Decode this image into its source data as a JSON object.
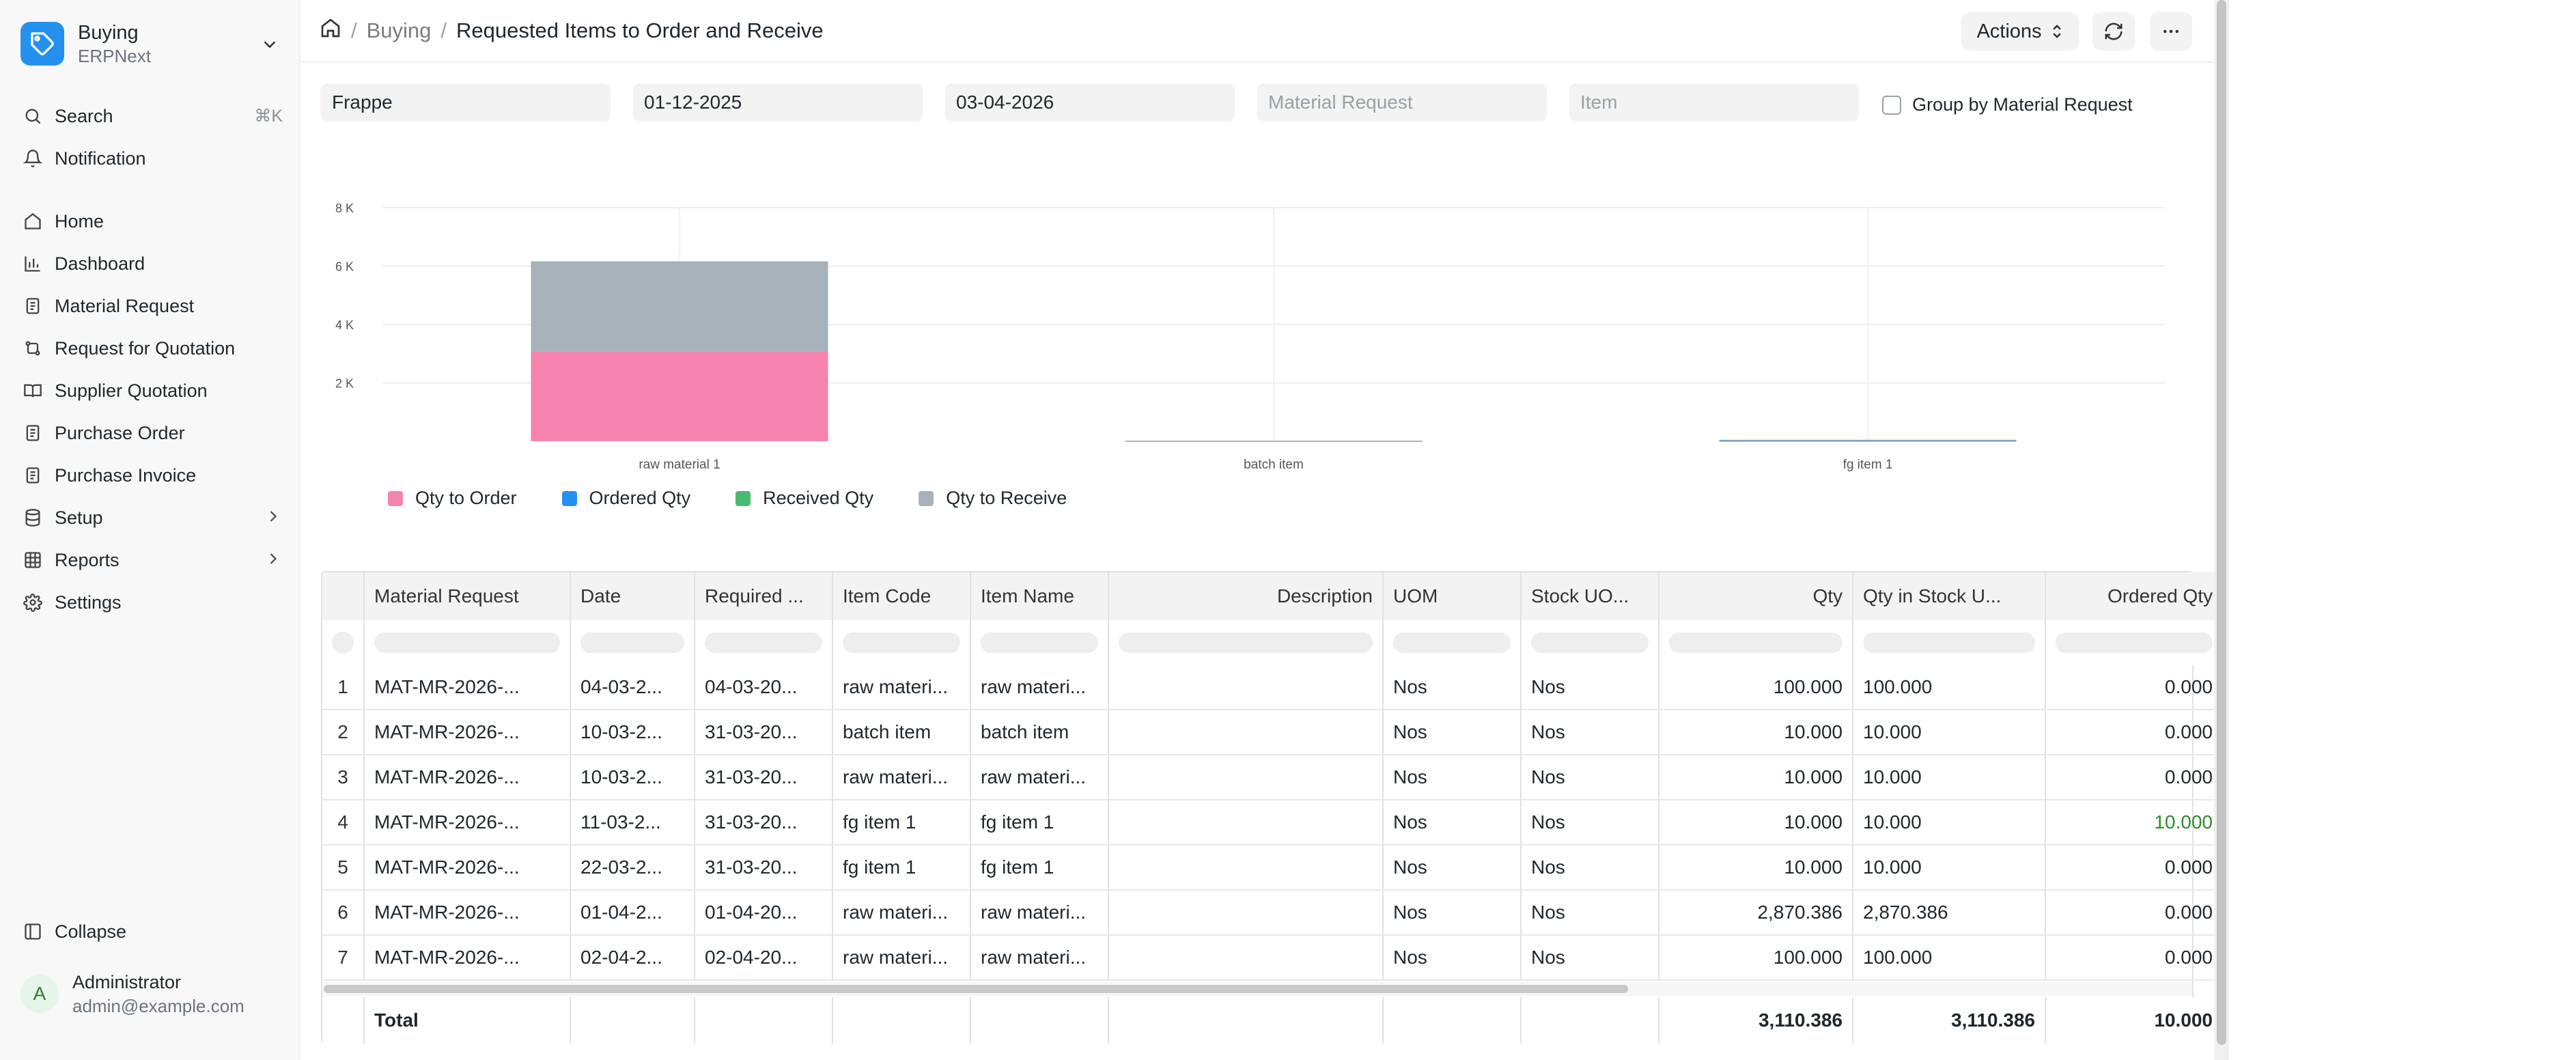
{
  "app": {
    "name": "Buying",
    "subtitle": "ERPNext"
  },
  "sidebar": {
    "search": {
      "label": "Search",
      "shortcut": "⌘K"
    },
    "notification": "Notification",
    "items": [
      {
        "label": "Home",
        "icon": "home-icon"
      },
      {
        "label": "Dashboard",
        "icon": "chart-icon"
      },
      {
        "label": "Material Request",
        "icon": "file-icon"
      },
      {
        "label": "Request for Quotation",
        "icon": "git-compare-icon"
      },
      {
        "label": "Supplier Quotation",
        "icon": "book-icon"
      },
      {
        "label": "Purchase Order",
        "icon": "file-icon"
      },
      {
        "label": "Purchase Invoice",
        "icon": "file-icon"
      },
      {
        "label": "Setup",
        "icon": "database-icon"
      },
      {
        "label": "Reports",
        "icon": "table-icon"
      },
      {
        "label": "Settings",
        "icon": "gear-icon"
      }
    ],
    "collapse": "Collapse",
    "user": {
      "initial": "A",
      "name": "Administrator",
      "email": "admin@example.com"
    }
  },
  "header": {
    "breadcrumb": [
      "Buying",
      "Requested Items to Order and Receive"
    ],
    "actions_label": "Actions"
  },
  "filters": {
    "company": "Frappe",
    "from_date": "01-12-2025",
    "to_date": "03-04-2026",
    "material_request_placeholder": "Material Request",
    "item_placeholder": "Item",
    "group_by_label": "Group by Material Request",
    "group_by_checked": false
  },
  "chart_data": {
    "type": "bar",
    "stacked": true,
    "categories": [
      "raw material 1",
      "batch item",
      "fg item 1"
    ],
    "series": [
      {
        "name": "Qty to Order",
        "color": "#f683ae",
        "values": [
          3080.386,
          10,
          20
        ]
      },
      {
        "name": "Ordered Qty",
        "color": "#2490ef",
        "values": [
          0,
          0,
          10
        ]
      },
      {
        "name": "Received Qty",
        "color": "#48bb74",
        "values": [
          0,
          0,
          0
        ]
      },
      {
        "name": "Qty to Receive",
        "color": "#a6b1b9",
        "values": [
          3080.386,
          10,
          20
        ]
      }
    ],
    "y_ticks": [
      "2 K",
      "4 K",
      "6 K",
      "8 K"
    ],
    "ylim": [
      0,
      8000
    ],
    "grid": true,
    "legend_position": "bottom-left"
  },
  "table": {
    "columns": [
      {
        "label": "",
        "align": "c"
      },
      {
        "label": "Material Request",
        "align": "l"
      },
      {
        "label": "Date",
        "align": "l"
      },
      {
        "label": "Required ...",
        "align": "l"
      },
      {
        "label": "Item Code",
        "align": "l"
      },
      {
        "label": "Item Name",
        "align": "l"
      },
      {
        "label": "Description",
        "align": "r"
      },
      {
        "label": "UOM",
        "align": "l"
      },
      {
        "label": "Stock UO...",
        "align": "l"
      },
      {
        "label": "Qty",
        "align": "r"
      },
      {
        "label": "Qty in Stock U...",
        "align": "l"
      },
      {
        "label": "Ordered Qty",
        "align": "r"
      }
    ],
    "rows": [
      [
        "1",
        "MAT-MR-2026-...",
        "04-03-2...",
        "04-03-20...",
        "raw materi...",
        "raw materi...",
        "",
        "Nos",
        "Nos",
        "100.000",
        "100.000",
        "0.000"
      ],
      [
        "2",
        "MAT-MR-2026-...",
        "10-03-2...",
        "31-03-20...",
        "batch item",
        "batch item",
        "",
        "Nos",
        "Nos",
        "10.000",
        "10.000",
        "0.000"
      ],
      [
        "3",
        "MAT-MR-2026-...",
        "10-03-2...",
        "31-03-20...",
        "raw materi...",
        "raw materi...",
        "",
        "Nos",
        "Nos",
        "10.000",
        "10.000",
        "0.000"
      ],
      [
        "4",
        "MAT-MR-2026-...",
        "11-03-2...",
        "31-03-20...",
        "fg item 1",
        "fg item 1",
        "",
        "Nos",
        "Nos",
        "10.000",
        "10.000",
        "10.000"
      ],
      [
        "5",
        "MAT-MR-2026-...",
        "22-03-2...",
        "31-03-20...",
        "fg item 1",
        "fg item 1",
        "",
        "Nos",
        "Nos",
        "10.000",
        "10.000",
        "0.000"
      ],
      [
        "6",
        "MAT-MR-2026-...",
        "01-04-2...",
        "01-04-20...",
        "raw materi...",
        "raw materi...",
        "",
        "Nos",
        "Nos",
        "2,870.386",
        "2,870.386",
        "0.000"
      ],
      [
        "7",
        "MAT-MR-2026-...",
        "02-04-2...",
        "02-04-20...",
        "raw materi...",
        "raw materi...",
        "",
        "Nos",
        "Nos",
        "100.000",
        "100.000",
        "0.000"
      ]
    ],
    "total": {
      "label": "Total",
      "qty": "3,110.386",
      "stock_qty": "3,110.386",
      "ordered_qty": "10.000"
    }
  }
}
